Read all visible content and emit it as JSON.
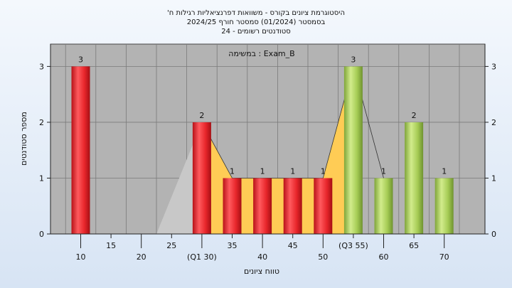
{
  "chart_data": {
    "type": "bar",
    "title_lines": [
      "היסטוגרמת ציונים בקורס - משוואות דפרנציאליות רגילות ח'",
      "בסמסטר  (01/2024)  סמסטר חורף 2024/25",
      "סטודנטים רשומים - 24"
    ],
    "annotation": "Exam_B : במשימה",
    "xlabel": "טווח ציונים",
    "ylabel": "מספר סטודנטים",
    "ylim": [
      0,
      3.4
    ],
    "y_ticks": [
      0,
      1,
      2,
      3
    ],
    "x_ticks": [
      "10",
      "15",
      "20",
      "25",
      "(Q1 30)",
      "35",
      "40",
      "45",
      "50",
      "(Q3 55)",
      "60",
      "65",
      "70"
    ],
    "values": [
      3,
      0,
      0,
      0,
      2,
      1,
      1,
      1,
      1,
      3,
      1,
      2,
      1
    ],
    "data_labels": [
      "3",
      "",
      "",
      "",
      "2",
      "1",
      "1",
      "1",
      "1",
      "3",
      "1",
      "2",
      "1"
    ],
    "bar_colors": [
      "#e8262b",
      "",
      "",
      "",
      "#e8262b",
      "#e8262b",
      "#e8262b",
      "#e8262b",
      "#e8262b",
      "#a6cc55",
      "#a6cc55",
      "#a6cc55",
      "#a6cc55"
    ],
    "grid": true,
    "colors": {
      "plot_bg": "#b3b3b3",
      "grid": "#7a7a7a",
      "band": "#ffcc55",
      "band_left": "#c8c8c8"
    }
  }
}
